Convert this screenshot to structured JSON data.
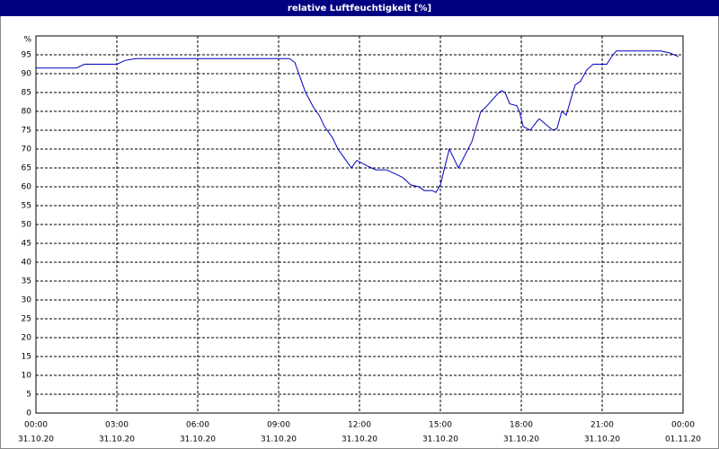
{
  "chart_data": {
    "type": "line",
    "title": "relative Luftfeuchtigkeit [%]",
    "y_unit": "%",
    "x": [
      0,
      1.5,
      1.8,
      3.0,
      3.3,
      3.7,
      4.0,
      9.0,
      9.4,
      9.6,
      9.8,
      10.0,
      10.3,
      10.5,
      10.7,
      11.0,
      11.2,
      11.5,
      11.7,
      11.9,
      12.3,
      12.6,
      13.0,
      13.3,
      13.6,
      13.9,
      14.2,
      14.4,
      14.7,
      14.83,
      15.0,
      15.33,
      15.67,
      16.17,
      16.5,
      16.67,
      17.17,
      17.27,
      17.4,
      17.57,
      17.83,
      17.93,
      18.07,
      18.33,
      18.6,
      18.67,
      19.0,
      19.17,
      19.33,
      19.5,
      19.67,
      19.87,
      20.0,
      20.2,
      20.43,
      20.67,
      21.17,
      21.4,
      21.53,
      23.17,
      23.5,
      23.83
    ],
    "series": [
      {
        "name": "relative Luftfeuchtigkeit",
        "color": "#0000c0",
        "values": [
          91.5,
          91.5,
          92.5,
          92.5,
          93.5,
          94,
          94,
          94,
          94,
          93,
          89,
          85,
          81,
          79,
          76,
          73,
          70,
          67,
          65,
          67,
          65.5,
          64.5,
          64.5,
          63.5,
          62.5,
          60.5,
          60,
          59,
          59,
          58.5,
          60.5,
          70,
          65,
          72,
          80,
          81,
          85,
          85.5,
          85,
          82,
          81.5,
          80,
          76,
          75,
          77.5,
          78,
          76,
          75,
          75.5,
          80,
          79,
          84,
          87,
          88,
          91,
          92.5,
          92.5,
          95,
          96,
          96,
          95.5,
          94.5
        ]
      }
    ],
    "xlim": [
      0,
      24
    ],
    "xticks": [
      {
        "value": 0,
        "label": "00:00",
        "date": "31.10.20"
      },
      {
        "value": 3,
        "label": "03:00",
        "date": "31.10.20"
      },
      {
        "value": 6,
        "label": "06:00",
        "date": "31.10.20"
      },
      {
        "value": 9,
        "label": "09:00",
        "date": "31.10.20"
      },
      {
        "value": 12,
        "label": "12:00",
        "date": "31.10.20"
      },
      {
        "value": 15,
        "label": "15:00",
        "date": "31.10.20"
      },
      {
        "value": 18,
        "label": "18:00",
        "date": "31.10.20"
      },
      {
        "value": 21,
        "label": "21:00",
        "date": "31.10.20"
      },
      {
        "value": 24,
        "label": "00:00",
        "date": "01.11.20"
      }
    ],
    "ylim": [
      0,
      100
    ],
    "yticks": [
      0,
      5,
      10,
      15,
      20,
      25,
      30,
      35,
      40,
      45,
      50,
      55,
      60,
      65,
      70,
      75,
      80,
      85,
      90,
      95
    ],
    "grid": true
  }
}
